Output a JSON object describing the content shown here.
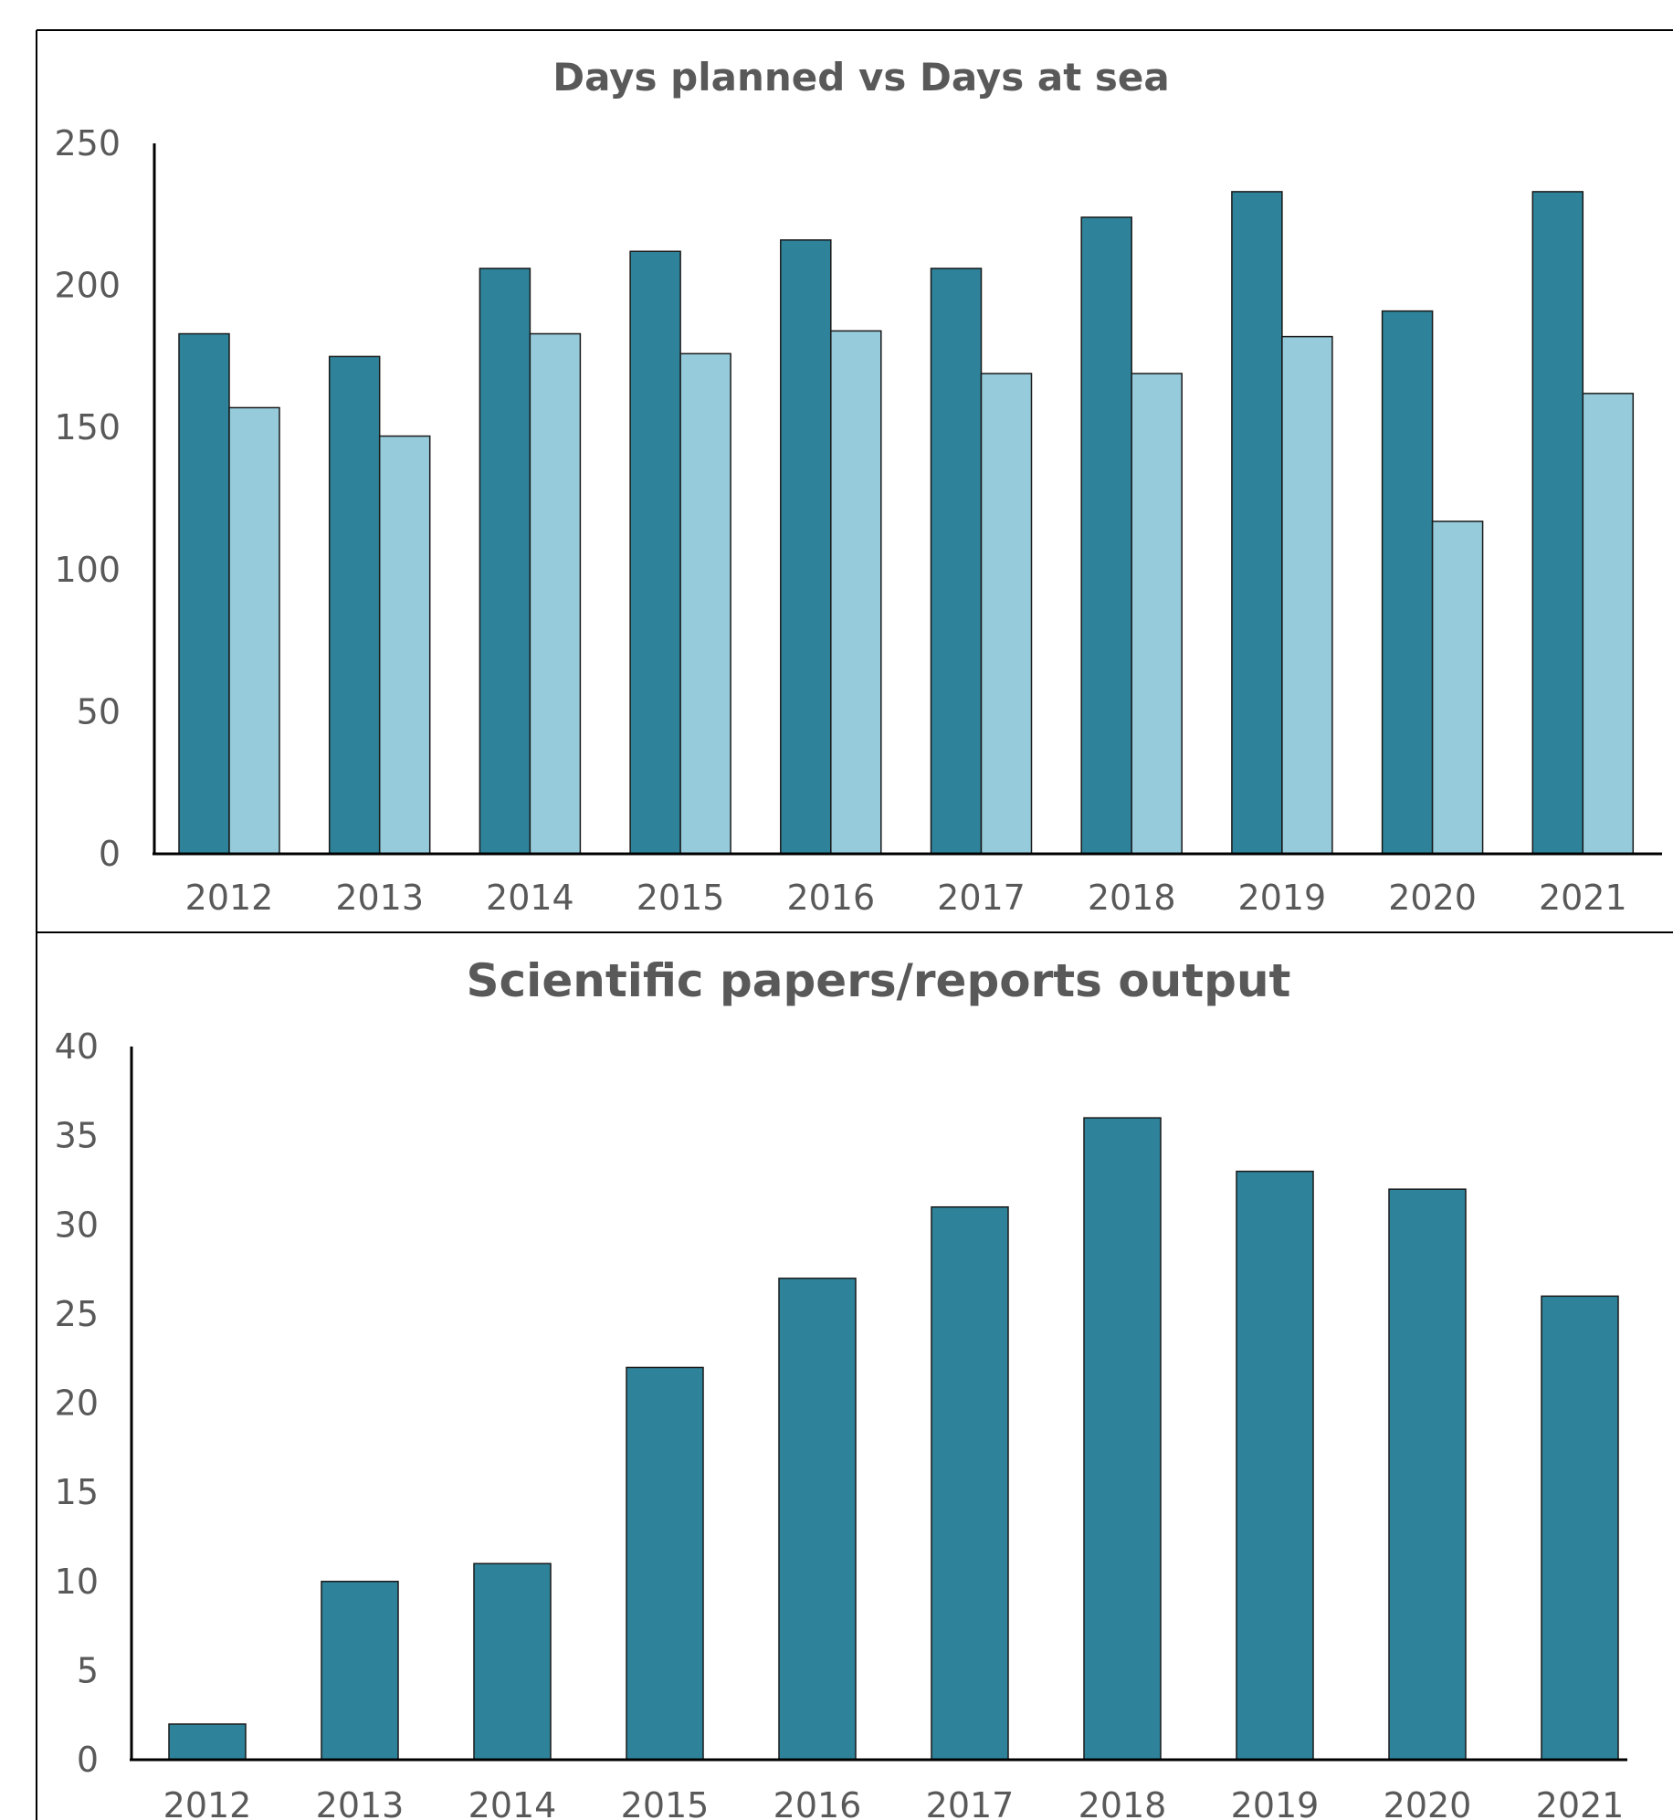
{
  "colors": {
    "dark_teal": "#2e839a",
    "light_blue": "#95cbdb",
    "text_gray": "#595959"
  },
  "chart_data": [
    {
      "type": "bar",
      "title": "Days planned vs Days at sea",
      "categories": [
        "2012",
        "2013",
        "2014",
        "2015",
        "2016",
        "2017",
        "2018",
        "2019",
        "2020",
        "2021"
      ],
      "series": [
        {
          "color": "#2e839a",
          "values": [
            183,
            175,
            206,
            212,
            216,
            206,
            224,
            233,
            191,
            233
          ]
        },
        {
          "color": "#95cbdb",
          "values": [
            157,
            147,
            183,
            176,
            184,
            169,
            169,
            182,
            117,
            162
          ]
        }
      ],
      "yticks": [
        "0",
        "50",
        "100",
        "150",
        "200",
        "250"
      ],
      "ylim": [
        0,
        250
      ],
      "legend": "none",
      "grid": false
    },
    {
      "type": "bar",
      "title": "Scientific papers/reports output",
      "categories": [
        "2012",
        "2013",
        "2014",
        "2015",
        "2016",
        "2017",
        "2018",
        "2019",
        "2020",
        "2021"
      ],
      "series": [
        {
          "color": "#2e839a",
          "values": [
            2,
            10,
            11,
            22,
            27,
            31,
            36,
            33,
            32,
            26
          ]
        }
      ],
      "yticks": [
        "0",
        "5",
        "10",
        "15",
        "20",
        "25",
        "30",
        "35",
        "40"
      ],
      "ylim": [
        0,
        40
      ],
      "legend": "none",
      "grid": false
    }
  ]
}
